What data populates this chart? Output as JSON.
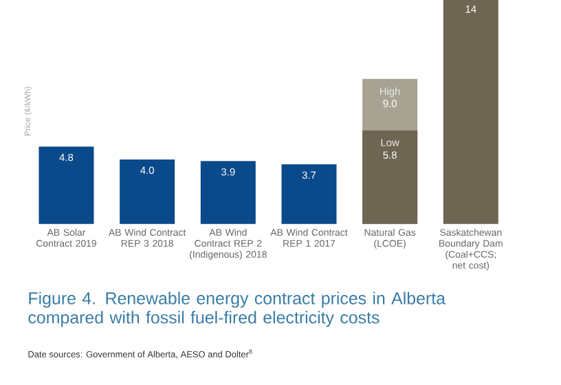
{
  "chart_data": {
    "type": "bar",
    "title": "Figure 4. Renewable energy contract prices in Alberta compared with fossil fuel-fired electricity costs",
    "ylabel": "Price (¢/kWh)",
    "categories": [
      "AB Solar Contract 2019",
      "AB Wind Contract REP 3 2018",
      "AB Wind Contract REP 2 (Indigenous) 2018",
      "AB Wind Contract REP 1 2017",
      "Natural Gas (LCOE)",
      "Saskatchewan Boundary Dam (Coal+CCS; net cost)"
    ],
    "series": [
      {
        "colors": [
          null,
          null,
          null,
          null,
          "#a8a293",
          null
        ],
        "values": [
          null,
          null,
          null,
          null,
          9.0,
          null
        ],
        "value_labels": [
          null,
          null,
          null,
          null,
          "9.0",
          null
        ]
      },
      {
        "colors": [
          "#0b4a8a",
          "#0b4a8a",
          "#0b4a8a",
          "#0b4a8a",
          "#6e6552",
          "#6e6552"
        ],
        "values": [
          4.8,
          4.0,
          3.9,
          3.7,
          5.8,
          14
        ],
        "value_labels": [
          "4.8",
          "4.0",
          "3.9",
          "3.7",
          "5.8",
          "14"
        ]
      }
    ],
    "annotations": [
      {
        "text": "Low",
        "x": "Natural Gas (LCOE)",
        "y": 5.8
      },
      {
        "text": "High",
        "x": "Natural Gas (LCOE)",
        "y": 9.0
      },
      "Date sources: Government of Alberta, AESO and Dolter$^{8}$"
    ]
  }
}
